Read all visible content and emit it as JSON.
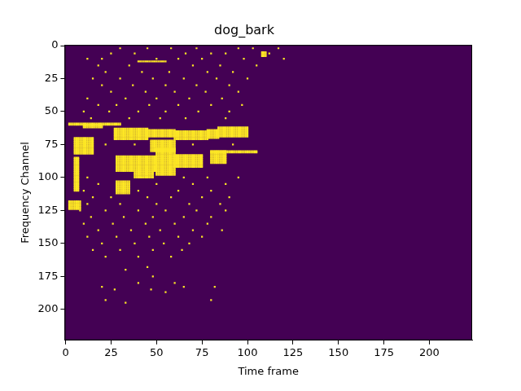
{
  "chart_data": {
    "type": "heatmap",
    "title": "dog_bark",
    "x_label": "Time frame",
    "y_label": "Frequency Channel",
    "xlim": [
      -0.5,
      223.5
    ],
    "ylim": [
      223.5,
      -0.5
    ],
    "xticks": [
      0,
      25,
      50,
      75,
      100,
      125,
      150,
      175,
      200
    ],
    "yticks": [
      0,
      25,
      50,
      75,
      100,
      125,
      150,
      175,
      200
    ],
    "grid": false,
    "colors": [
      "#440154",
      "#fde725"
    ],
    "on_blocks": [
      [
        2,
        30,
        59,
        60
      ],
      [
        27,
        45,
        63,
        71
      ],
      [
        45,
        60,
        64,
        69
      ],
      [
        60,
        78,
        65,
        71
      ],
      [
        78,
        84,
        64,
        70
      ],
      [
        84,
        100,
        62,
        69
      ],
      [
        5,
        15,
        70,
        82
      ],
      [
        47,
        60,
        72,
        80
      ],
      [
        80,
        105,
        80,
        81
      ],
      [
        28,
        50,
        84,
        95
      ],
      [
        50,
        60,
        78,
        98
      ],
      [
        60,
        75,
        83,
        92
      ],
      [
        80,
        88,
        80,
        89
      ],
      [
        28,
        35,
        103,
        112
      ],
      [
        2,
        8,
        118,
        124
      ],
      [
        38,
        48,
        96,
        100
      ],
      [
        10,
        20,
        60,
        62
      ],
      [
        5,
        7,
        85,
        110
      ],
      [
        40,
        55,
        12,
        12
      ],
      [
        108,
        110,
        5,
        8
      ]
    ],
    "on_cells": [
      [
        30,
        2
      ],
      [
        45,
        2
      ],
      [
        58,
        2
      ],
      [
        72,
        2
      ],
      [
        95,
        2
      ],
      [
        103,
        2
      ],
      [
        117,
        2
      ],
      [
        25,
        6
      ],
      [
        38,
        6
      ],
      [
        66,
        6
      ],
      [
        80,
        6
      ],
      [
        88,
        6
      ],
      [
        112,
        6
      ],
      [
        12,
        10
      ],
      [
        20,
        10
      ],
      [
        50,
        10
      ],
      [
        62,
        10
      ],
      [
        75,
        10
      ],
      [
        98,
        10
      ],
      [
        120,
        10
      ],
      [
        18,
        15
      ],
      [
        35,
        15
      ],
      [
        70,
        15
      ],
      [
        85,
        15
      ],
      [
        105,
        15
      ],
      [
        22,
        20
      ],
      [
        42,
        20
      ],
      [
        57,
        20
      ],
      [
        78,
        20
      ],
      [
        92,
        20
      ],
      [
        15,
        25
      ],
      [
        30,
        25
      ],
      [
        48,
        25
      ],
      [
        65,
        25
      ],
      [
        83,
        25
      ],
      [
        100,
        25
      ],
      [
        20,
        30
      ],
      [
        37,
        30
      ],
      [
        55,
        30
      ],
      [
        72,
        30
      ],
      [
        90,
        30
      ],
      [
        25,
        35
      ],
      [
        44,
        35
      ],
      [
        60,
        35
      ],
      [
        77,
        35
      ],
      [
        95,
        35
      ],
      [
        12,
        40
      ],
      [
        33,
        40
      ],
      [
        50,
        40
      ],
      [
        68,
        40
      ],
      [
        86,
        40
      ],
      [
        18,
        45
      ],
      [
        28,
        45
      ],
      [
        46,
        45
      ],
      [
        62,
        45
      ],
      [
        80,
        45
      ],
      [
        97,
        45
      ],
      [
        10,
        50
      ],
      [
        24,
        50
      ],
      [
        40,
        50
      ],
      [
        55,
        50
      ],
      [
        73,
        50
      ],
      [
        90,
        50
      ],
      [
        14,
        55
      ],
      [
        35,
        55
      ],
      [
        52,
        55
      ],
      [
        66,
        55
      ],
      [
        88,
        55
      ],
      [
        22,
        75
      ],
      [
        38,
        75
      ],
      [
        70,
        75
      ],
      [
        92,
        75
      ],
      [
        12,
        100
      ],
      [
        42,
        100
      ],
      [
        65,
        100
      ],
      [
        78,
        100
      ],
      [
        95,
        100
      ],
      [
        18,
        105
      ],
      [
        50,
        105
      ],
      [
        70,
        105
      ],
      [
        88,
        105
      ],
      [
        10,
        110
      ],
      [
        40,
        110
      ],
      [
        62,
        110
      ],
      [
        80,
        110
      ],
      [
        15,
        115
      ],
      [
        25,
        115
      ],
      [
        45,
        115
      ],
      [
        58,
        115
      ],
      [
        75,
        115
      ],
      [
        90,
        115
      ],
      [
        12,
        120
      ],
      [
        30,
        120
      ],
      [
        50,
        120
      ],
      [
        68,
        120
      ],
      [
        85,
        120
      ],
      [
        8,
        125
      ],
      [
        22,
        125
      ],
      [
        40,
        125
      ],
      [
        55,
        125
      ],
      [
        72,
        125
      ],
      [
        88,
        125
      ],
      [
        14,
        130
      ],
      [
        32,
        130
      ],
      [
        48,
        130
      ],
      [
        65,
        130
      ],
      [
        80,
        130
      ],
      [
        10,
        135
      ],
      [
        26,
        135
      ],
      [
        44,
        135
      ],
      [
        60,
        135
      ],
      [
        78,
        135
      ],
      [
        18,
        140
      ],
      [
        36,
        140
      ],
      [
        52,
        140
      ],
      [
        70,
        140
      ],
      [
        86,
        140
      ],
      [
        12,
        145
      ],
      [
        28,
        145
      ],
      [
        46,
        145
      ],
      [
        62,
        145
      ],
      [
        75,
        145
      ],
      [
        20,
        150
      ],
      [
        38,
        150
      ],
      [
        54,
        150
      ],
      [
        68,
        150
      ],
      [
        15,
        155
      ],
      [
        30,
        155
      ],
      [
        48,
        155
      ],
      [
        64,
        155
      ],
      [
        22,
        160
      ],
      [
        40,
        160
      ],
      [
        58,
        160
      ],
      [
        45,
        168
      ],
      [
        33,
        170
      ],
      [
        48,
        175
      ],
      [
        40,
        180
      ],
      [
        60,
        180
      ],
      [
        20,
        183
      ],
      [
        65,
        183
      ],
      [
        82,
        183
      ],
      [
        27,
        185
      ],
      [
        47,
        185
      ],
      [
        55,
        187
      ],
      [
        22,
        193
      ],
      [
        80,
        193
      ],
      [
        33,
        195
      ]
    ]
  }
}
